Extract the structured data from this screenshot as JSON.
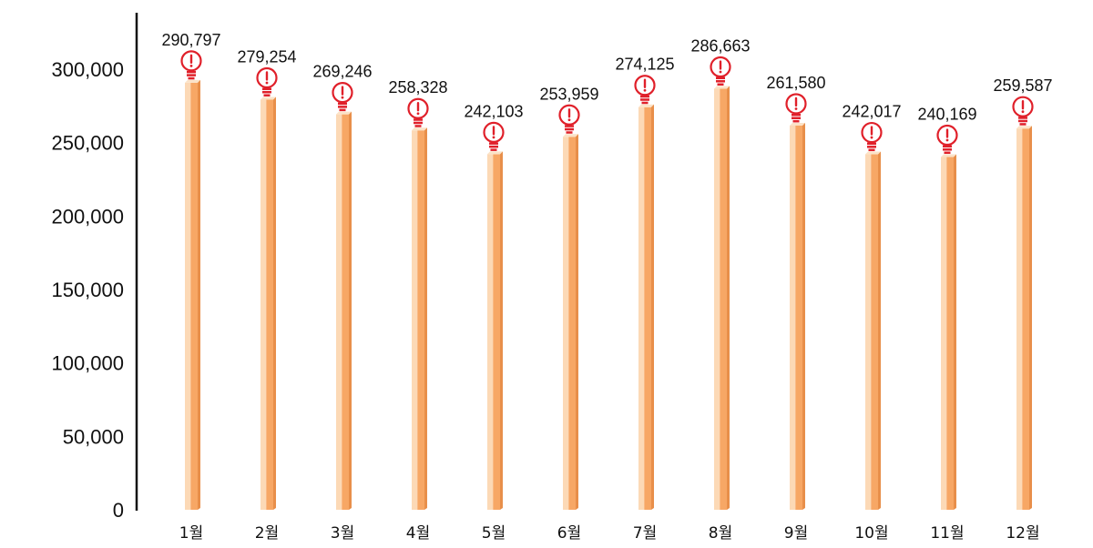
{
  "chart_data": {
    "type": "bar",
    "title": "",
    "xlabel": "",
    "ylabel": "",
    "categories": [
      "1월",
      "2월",
      "3월",
      "4월",
      "5월",
      "6월",
      "7월",
      "8월",
      "9월",
      "10월",
      "11월",
      "12월"
    ],
    "values": [
      290797,
      279254,
      269246,
      258328,
      242103,
      253959,
      274125,
      286663,
      261580,
      242017,
      240169,
      259587
    ],
    "value_labels": [
      "290,797",
      "279,254",
      "269,246",
      "258,328",
      "242,103",
      "253,959",
      "274,125",
      "286,663",
      "261,580",
      "242,017",
      "240,169",
      "259,587"
    ],
    "yticks": [
      0,
      50000,
      100000,
      150000,
      200000,
      250000,
      300000
    ],
    "ytick_labels": [
      "0",
      "50,000",
      "100,000",
      "150,000",
      "200,000",
      "250,000",
      "300,000"
    ],
    "ylim": [
      0,
      300000
    ],
    "grid": false,
    "legend": "none",
    "marker_icon": "lightbulb-exclamation-icon"
  },
  "colors": {
    "bar_main": "#f7a765",
    "bar_light": "#fcd9b6",
    "bar_top": "#fbe3c8",
    "icon": "#e0202a",
    "axis": "#111111"
  }
}
